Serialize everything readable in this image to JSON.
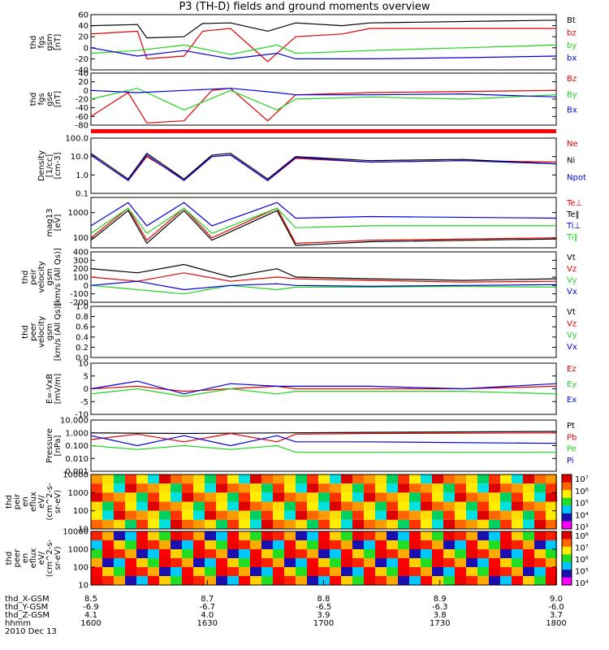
{
  "title": "P3 (TH-D) fields and ground moments overview",
  "colors": {
    "black": "#000000",
    "red": "#e00000",
    "green": "#1fd41f",
    "blue": "#0000dd",
    "frame": "#000000"
  },
  "chart_data": [
    {
      "type": "line",
      "ylabel": [
        "thd",
        "fgs",
        "gsm",
        "[nT]"
      ],
      "ylim": [
        -40,
        60
      ],
      "ticks": [
        "60",
        "40",
        "20",
        "0",
        "-20",
        "-40"
      ],
      "legend": [
        [
          "Bt",
          "black"
        ],
        [
          "bz",
          "red"
        ],
        [
          "by",
          "green"
        ],
        [
          "bx",
          "blue"
        ]
      ],
      "series": [
        {
          "name": "Bt",
          "color": "black",
          "x": [
            8.5,
            8.55,
            8.56,
            8.6,
            8.62,
            8.65,
            8.69,
            8.72,
            8.77,
            8.8,
            9.0
          ],
          "y": [
            40,
            42,
            18,
            20,
            44,
            45,
            30,
            45,
            40,
            45,
            50
          ]
        },
        {
          "name": "bz",
          "color": "red",
          "x": [
            8.5,
            8.55,
            8.56,
            8.6,
            8.62,
            8.65,
            8.69,
            8.72,
            8.77,
            8.8,
            9.0
          ],
          "y": [
            25,
            30,
            -20,
            -15,
            30,
            35,
            -25,
            20,
            25,
            35,
            35
          ]
        },
        {
          "name": "by",
          "color": "green",
          "x": [
            8.5,
            8.55,
            8.6,
            8.65,
            8.7,
            8.72,
            8.8,
            8.9,
            9.0
          ],
          "y": [
            -10,
            -5,
            5,
            -12,
            5,
            -10,
            -5,
            0,
            5
          ]
        },
        {
          "name": "bx",
          "color": "blue",
          "x": [
            8.5,
            8.55,
            8.6,
            8.65,
            8.7,
            8.72,
            8.8,
            8.9,
            9.0
          ],
          "y": [
            0,
            -15,
            -5,
            -20,
            -10,
            -20,
            -20,
            -18,
            -15
          ]
        }
      ]
    },
    {
      "type": "line",
      "ylabel": [
        "thd",
        "fgs",
        "gse",
        "[nT]"
      ],
      "ylim": [
        -80,
        40
      ],
      "ticks": [
        "40",
        "20",
        "0",
        "-20",
        "-40",
        "-60",
        "-80"
      ],
      "legend": [
        [
          "Bz",
          "red"
        ],
        [
          "By",
          "green"
        ],
        [
          "Bx",
          "blue"
        ]
      ],
      "series": [
        {
          "name": "Bz",
          "color": "red",
          "x": [
            8.5,
            8.54,
            8.56,
            8.6,
            8.63,
            8.65,
            8.69,
            8.72,
            8.8,
            9.0
          ],
          "y": [
            -60,
            -5,
            -75,
            -70,
            0,
            5,
            -70,
            -10,
            -5,
            0
          ]
        },
        {
          "name": "By",
          "color": "green",
          "x": [
            8.5,
            8.55,
            8.6,
            8.65,
            8.7,
            8.72,
            8.8,
            8.9,
            9.0
          ],
          "y": [
            -20,
            5,
            -45,
            0,
            -45,
            -20,
            -15,
            -20,
            -10
          ]
        },
        {
          "name": "Bx",
          "color": "blue",
          "x": [
            8.5,
            8.55,
            8.6,
            8.65,
            8.7,
            8.72,
            8.8,
            8.9,
            9.0
          ],
          "y": [
            0,
            -5,
            0,
            5,
            -5,
            -10,
            -10,
            -8,
            -15
          ]
        }
      ]
    },
    {
      "type": "line",
      "ylabel": [
        "Density",
        "[1/cc]",
        "[cm-3]"
      ],
      "yscale": "log",
      "ylim": [
        0.1,
        100
      ],
      "ticks": [
        "100.0",
        "10.0",
        "1.0",
        "0.1"
      ],
      "legend": [
        [
          "Ne",
          "red"
        ],
        [
          "Ni",
          "black"
        ],
        [
          "Npot",
          "blue"
        ]
      ],
      "series": [
        {
          "name": "Ne",
          "color": "red",
          "x": [
            8.5,
            8.54,
            8.56,
            8.6,
            8.63,
            8.65,
            8.69,
            8.72,
            8.8,
            8.9,
            9.0
          ],
          "y": [
            12,
            0.5,
            10,
            0.6,
            10,
            12,
            0.5,
            8,
            5,
            6,
            5
          ]
        },
        {
          "name": "Ni",
          "color": "black",
          "x": [
            8.5,
            8.54,
            8.56,
            8.6,
            8.63,
            8.65,
            8.69,
            8.72,
            8.8,
            8.9,
            9.0
          ],
          "y": [
            15,
            0.6,
            15,
            0.6,
            12,
            15,
            0.6,
            10,
            6,
            7,
            4
          ]
        },
        {
          "name": "Npot",
          "color": "blue",
          "x": [
            8.5,
            8.54,
            8.56,
            8.6,
            8.63,
            8.65,
            8.69,
            8.72,
            8.8,
            8.9,
            9.0
          ],
          "y": [
            12,
            0.5,
            12,
            0.5,
            10,
            12,
            0.5,
            9,
            5,
            6,
            4
          ]
        }
      ]
    },
    {
      "type": "line",
      "ylabel": [
        "mag13",
        "[eV]"
      ],
      "yscale": "log",
      "ylim": [
        40,
        4000
      ],
      "ticks": [
        "1000",
        "100"
      ],
      "tickvals": [
        1000,
        100
      ],
      "legend": [
        [
          "Te⊥",
          "red"
        ],
        [
          "Te‖",
          "black"
        ],
        [
          "Ti⊥",
          "blue"
        ],
        [
          "Ti‖",
          "green"
        ]
      ],
      "series": [
        {
          "name": "Te⊥",
          "color": "red",
          "x": [
            8.5,
            8.54,
            8.56,
            8.6,
            8.63,
            8.7,
            8.72,
            8.8,
            9.0
          ],
          "y": [
            100,
            1500,
            80,
            1500,
            100,
            1500,
            60,
            80,
            100
          ]
        },
        {
          "name": "Te‖",
          "color": "black",
          "x": [
            8.5,
            8.54,
            8.56,
            8.6,
            8.63,
            8.7,
            8.72,
            8.8,
            9.0
          ],
          "y": [
            80,
            1200,
            60,
            1200,
            80,
            1200,
            50,
            70,
            90
          ]
        },
        {
          "name": "Ti⊥",
          "color": "blue",
          "x": [
            8.5,
            8.54,
            8.56,
            8.6,
            8.63,
            8.7,
            8.72,
            8.8,
            9.0
          ],
          "y": [
            300,
            2500,
            300,
            2500,
            300,
            2500,
            600,
            700,
            600
          ]
        },
        {
          "name": "Ti‖",
          "color": "green",
          "x": [
            8.5,
            8.54,
            8.56,
            8.6,
            8.63,
            8.7,
            8.72,
            8.8,
            9.0
          ],
          "y": [
            150,
            1500,
            150,
            1500,
            150,
            1500,
            250,
            300,
            300
          ]
        }
      ]
    },
    {
      "type": "line",
      "ylabel": [
        "thd",
        "peir",
        "velocity",
        "gsm",
        "[km/s (All Qs)]"
      ],
      "ylim": [
        -200,
        400
      ],
      "ticks": [
        "400",
        "300",
        "200",
        "100",
        "0",
        "-100",
        "-200"
      ],
      "legend": [
        [
          "Vt",
          "black"
        ],
        [
          "Vz",
          "red"
        ],
        [
          "Vy",
          "green"
        ],
        [
          "Vx",
          "blue"
        ]
      ],
      "series": [
        {
          "name": "Vt",
          "color": "black",
          "x": [
            8.5,
            8.55,
            8.6,
            8.65,
            8.7,
            8.72,
            8.8,
            8.9,
            9.0
          ],
          "y": [
            200,
            150,
            250,
            100,
            200,
            100,
            80,
            60,
            80
          ]
        },
        {
          "name": "Vz",
          "color": "red",
          "x": [
            8.5,
            8.55,
            8.6,
            8.65,
            8.7,
            8.72,
            8.8,
            8.9,
            9.0
          ],
          "y": [
            100,
            50,
            150,
            50,
            100,
            80,
            60,
            40,
            50
          ]
        },
        {
          "name": "Vy",
          "color": "green",
          "x": [
            8.5,
            8.55,
            8.6,
            8.65,
            8.7,
            8.72,
            8.8,
            8.9,
            9.0
          ],
          "y": [
            0,
            -50,
            -100,
            0,
            -50,
            -20,
            -20,
            -10,
            -20
          ]
        },
        {
          "name": "Vx",
          "color": "blue",
          "x": [
            8.5,
            8.55,
            8.6,
            8.65,
            8.7,
            8.72,
            8.8,
            8.9,
            9.0
          ],
          "y": [
            0,
            50,
            -50,
            0,
            20,
            0,
            -10,
            0,
            10
          ]
        }
      ]
    },
    {
      "type": "line",
      "ylabel": [
        "thd",
        "peer",
        "velocity",
        "gsm",
        "[km/s (All Qs)]"
      ],
      "ylim": [
        0,
        1
      ],
      "ticks": [
        "1.0",
        "0.8",
        "0.6",
        "0.4",
        "0.2",
        "0.0"
      ],
      "legend": [
        [
          "Vt",
          "black"
        ],
        [
          "Vz",
          "red"
        ],
        [
          "Vy",
          "green"
        ],
        [
          "Vx",
          "blue"
        ]
      ],
      "series": []
    },
    {
      "type": "line",
      "ylabel": [
        "E=-VxB",
        "[mV/m]"
      ],
      "ylim": [
        -10,
        10
      ],
      "ticks": [
        "10",
        "5",
        "0",
        "-5",
        "-10"
      ],
      "legend": [
        [
          "Ez",
          "red"
        ],
        [
          "Ey",
          "green"
        ],
        [
          "Ex",
          "blue"
        ]
      ],
      "series": [
        {
          "name": "Ez",
          "color": "red",
          "x": [
            8.5,
            8.55,
            8.6,
            8.65,
            8.7,
            8.72,
            8.8,
            8.9,
            9.0
          ],
          "y": [
            0,
            1,
            -1,
            0,
            1,
            0,
            0,
            0,
            1
          ]
        },
        {
          "name": "Ey",
          "color": "green",
          "x": [
            8.5,
            8.55,
            8.6,
            8.65,
            8.7,
            8.72,
            8.8,
            8.9,
            9.0
          ],
          "y": [
            -2,
            0,
            -3,
            0,
            -2,
            -1,
            -1,
            -1,
            -2
          ]
        },
        {
          "name": "Ex",
          "color": "blue",
          "x": [
            8.5,
            8.55,
            8.6,
            8.65,
            8.7,
            8.72,
            8.8,
            8.9,
            9.0
          ],
          "y": [
            0,
            3,
            -2,
            2,
            1,
            1,
            1,
            0,
            2
          ]
        }
      ]
    },
    {
      "type": "line",
      "ylabel": [
        "Pressure",
        "[nPa]"
      ],
      "yscale": "log",
      "ylim": [
        0.001,
        10
      ],
      "ticks": [
        "10.000",
        "1.000",
        "0.100",
        "0.010",
        "0.001"
      ],
      "legend": [
        [
          "Pt",
          "black"
        ],
        [
          "Pb",
          "red"
        ],
        [
          "Pe",
          "green"
        ],
        [
          "Pi",
          "blue"
        ]
      ],
      "series": [
        {
          "name": "Pt",
          "color": "black",
          "x": [
            8.5,
            8.6,
            8.7,
            8.8,
            9.0
          ],
          "y": [
            1.0,
            0.9,
            1.0,
            1.1,
            1.3
          ]
        },
        {
          "name": "Pb",
          "color": "red",
          "x": [
            8.5,
            8.55,
            8.6,
            8.65,
            8.7,
            8.72,
            8.8,
            9.0
          ],
          "y": [
            0.3,
            0.8,
            0.2,
            0.9,
            0.2,
            0.8,
            0.9,
            1.0
          ]
        },
        {
          "name": "Pe",
          "color": "green",
          "x": [
            8.5,
            8.55,
            8.6,
            8.65,
            8.7,
            8.72,
            8.8,
            9.0
          ],
          "y": [
            0.1,
            0.05,
            0.1,
            0.05,
            0.1,
            0.03,
            0.03,
            0.03
          ]
        },
        {
          "name": "Pi",
          "color": "blue",
          "x": [
            8.5,
            8.55,
            8.6,
            8.65,
            8.7,
            8.72,
            8.8,
            9.0
          ],
          "y": [
            0.6,
            0.1,
            0.6,
            0.1,
            0.6,
            0.2,
            0.2,
            0.15
          ]
        }
      ]
    },
    {
      "type": "heatmap",
      "ylabel": [
        "thd",
        "peir",
        "en",
        "eflux",
        "eV/",
        "(cm^2-s-",
        "sr-eV)"
      ],
      "yscale": "log",
      "ylim": [
        10,
        10000
      ],
      "ticks": [
        "10000",
        "1000",
        "100",
        "10"
      ],
      "colorbar_ticks": [
        "10⁷",
        "10⁶",
        "10⁵",
        "10⁴",
        "10³"
      ]
    },
    {
      "type": "heatmap",
      "ylabel": [
        "thd",
        "peer",
        "en",
        "eflux",
        "eV/",
        "(cm^2-s-",
        "sr-eV)"
      ],
      "yscale": "log",
      "ylim": [
        10,
        10000
      ],
      "ticks": [
        "10000",
        "1000",
        "100",
        "10"
      ],
      "colorbar_ticks": [
        "10⁸",
        "10⁷",
        "10⁶",
        "10⁵",
        "10⁴"
      ]
    }
  ],
  "xaxis": {
    "rows": [
      {
        "label": "thd_X-GSM",
        "values": [
          "8.5",
          "8.7",
          "8.8",
          "8.9",
          "9.0"
        ]
      },
      {
        "label": "thd_Y-GSM",
        "values": [
          "-6.9",
          "-6.7",
          "-6.5",
          "-6.3",
          "-6.0"
        ]
      },
      {
        "label": "thd_Z-GSM",
        "values": [
          "4.1",
          "4.0",
          "3.9",
          "3.8",
          "3.7"
        ]
      },
      {
        "label": "hhmm",
        "values": [
          "1600",
          "1630",
          "1700",
          "1730",
          "1800"
        ]
      }
    ],
    "date": "2010 Dec 13"
  }
}
